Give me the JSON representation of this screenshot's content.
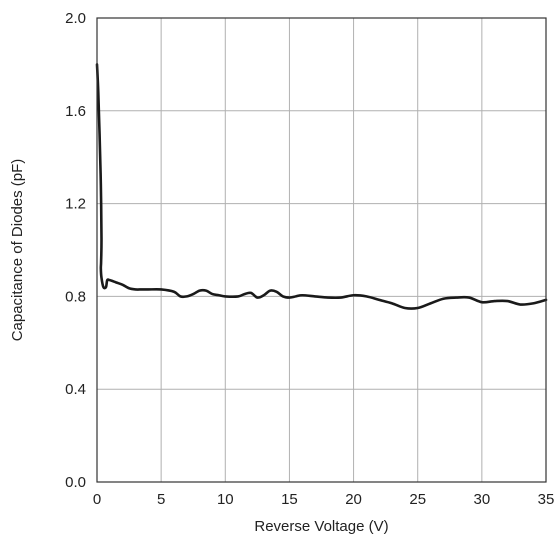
{
  "chart_data": {
    "type": "line",
    "title": "",
    "xlabel": "Reverse Voltage (V)",
    "ylabel": "Capacitance of Diodes (pF)",
    "xlim": [
      0,
      35
    ],
    "ylim": [
      0.0,
      2.0
    ],
    "xticks": [
      0,
      5,
      10,
      15,
      20,
      25,
      30,
      35
    ],
    "xtick_labels": [
      "0",
      "5",
      "10",
      "15",
      "20",
      "25",
      "30",
      "35"
    ],
    "yticks": [
      0.0,
      0.4,
      0.8,
      1.2,
      1.6,
      2.0
    ],
    "ytick_labels": [
      "0.0",
      "0.4",
      "0.8",
      "1.2",
      "1.6",
      "2.0"
    ],
    "grid": true,
    "line_color": "#1a1a1a",
    "grid_color": "#b0b0b0",
    "series": [
      {
        "x": [
          0.0,
          0.1,
          0.2,
          0.3,
          0.35,
          0.32,
          0.3,
          0.35,
          0.5,
          0.7,
          0.8,
          1.0,
          1.5,
          2.0,
          2.5,
          3.0,
          3.5,
          4.0,
          5.0,
          6.0,
          6.5,
          7.0,
          7.5,
          8.0,
          8.5,
          9.0,
          9.5,
          10.0,
          11.0,
          11.5,
          12.0,
          12.5,
          13.0,
          13.5,
          14.0,
          14.5,
          15.0,
          15.5,
          16.0,
          17.0,
          18.0,
          19.0,
          20.0,
          21.0,
          22.0,
          23.0,
          24.0,
          25.0,
          26.0,
          27.0,
          28.0,
          29.0,
          30.0,
          31.0,
          32.0,
          33.0,
          34.0,
          35.0
        ],
        "y": [
          1.8,
          1.68,
          1.5,
          1.28,
          1.05,
          0.95,
          0.92,
          0.88,
          0.84,
          0.84,
          0.87,
          0.87,
          0.86,
          0.85,
          0.835,
          0.83,
          0.83,
          0.83,
          0.83,
          0.82,
          0.8,
          0.8,
          0.81,
          0.825,
          0.825,
          0.81,
          0.805,
          0.8,
          0.8,
          0.81,
          0.815,
          0.795,
          0.805,
          0.825,
          0.82,
          0.8,
          0.795,
          0.8,
          0.805,
          0.8,
          0.795,
          0.795,
          0.805,
          0.8,
          0.785,
          0.77,
          0.75,
          0.75,
          0.77,
          0.79,
          0.795,
          0.795,
          0.775,
          0.78,
          0.78,
          0.765,
          0.77,
          0.785
        ]
      }
    ]
  }
}
